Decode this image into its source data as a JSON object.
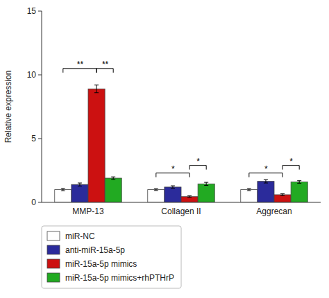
{
  "chart_data": {
    "type": "bar",
    "categories": [
      "MMP-13",
      "Collagen II",
      "Aggrecan"
    ],
    "series": [
      {
        "name": "miR-NC",
        "color": "#FFFFFF",
        "values": [
          1.0,
          1.0,
          1.0
        ],
        "errors": [
          0.09,
          0.07,
          0.08
        ]
      },
      {
        "name": "anti-miR-15a-5p",
        "color": "#2B2B9B",
        "values": [
          1.4,
          1.2,
          1.65
        ],
        "errors": [
          0.12,
          0.1,
          0.13
        ]
      },
      {
        "name": "miR-15a-5p mimics",
        "color": "#CC1111",
        "values": [
          8.9,
          0.45,
          0.6
        ],
        "errors": [
          0.3,
          0.06,
          0.07
        ]
      },
      {
        "name": "miR-15a-5p mimics+rhPTHrP",
        "color": "#22AA22",
        "values": [
          1.9,
          1.45,
          1.6
        ],
        "errors": [
          0.1,
          0.12,
          0.1
        ]
      }
    ],
    "ylabel": "Relative expression",
    "ylim": [
      0,
      15
    ],
    "yticks": [
      0,
      5,
      10,
      15
    ],
    "grid": false,
    "legend": "bottom",
    "annotations": [
      {
        "text": "**",
        "category": "MMP-13",
        "from": "miR-NC",
        "to": "miR-15a-5p mimics",
        "y": 10.5
      },
      {
        "text": "**",
        "category": "MMP-13",
        "from": "miR-15a-5p mimics",
        "to": "miR-15a-5p mimics+rhPTHrP",
        "y": 10.5
      },
      {
        "text": "*",
        "category": "Collagen II",
        "from": "miR-NC",
        "to": "miR-15a-5p mimics",
        "y": 2.3
      },
      {
        "text": "*",
        "category": "Collagen II",
        "from": "miR-15a-5p mimics",
        "to": "miR-15a-5p mimics+rhPTHrP",
        "y": 2.9
      },
      {
        "text": "*",
        "category": "Aggrecan",
        "from": "miR-NC",
        "to": "miR-15a-5p mimics",
        "y": 2.3
      },
      {
        "text": "*",
        "category": "Aggrecan",
        "from": "miR-15a-5p mimics",
        "to": "miR-15a-5p mimics+rhPTHrP",
        "y": 2.9
      }
    ]
  }
}
